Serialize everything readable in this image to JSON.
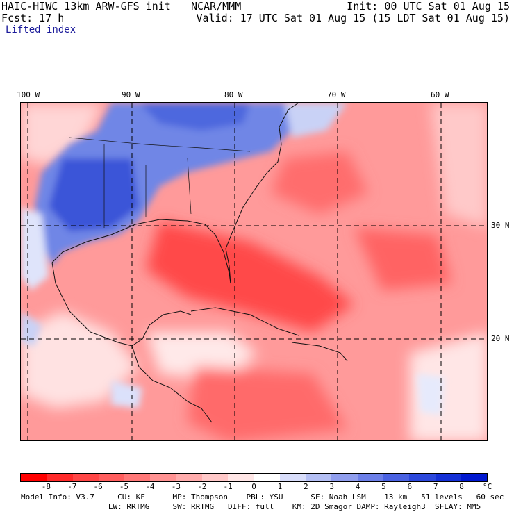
{
  "header": {
    "model": "HAIC-HIWC 13km ARW-GFS init",
    "org": "NCAR/MMM",
    "init": "Init: 00 UTC Sat 01 Aug 15",
    "fcst": "Fcst:   17 h",
    "valid": "Valid: 17 UTC Sat 01 Aug 15 (15 LDT Sat 01 Aug 15)",
    "field": "Lifted index"
  },
  "map": {
    "lon_labels": [
      "100 W",
      "90 W",
      "80 W",
      "70 W",
      "60 W"
    ],
    "lat_labels": [
      "30 N",
      "20 N"
    ],
    "colors": {
      "cold_blue": "#3a55d8",
      "mid_blue": "#6f86e6",
      "light_blue": "#c9d2f6",
      "red": "#ff3b3b",
      "mid_red": "#ff7c7c",
      "light_red": "#ffc4c4",
      "white": "#ffffff"
    }
  },
  "colorbar": {
    "ticks": [
      "-8",
      "-7",
      "-6",
      "-5",
      "-4",
      "-3",
      "-2",
      "-1",
      "0",
      "1",
      "2",
      "3",
      "4",
      "5",
      "6",
      "7",
      "8"
    ],
    "unit": "°C",
    "colors": [
      "#ff0000",
      "#ff2a2a",
      "#ff4646",
      "#ff5e5e",
      "#ff7878",
      "#ff9292",
      "#ffacac",
      "#ffc8c8",
      "#ffe6e6",
      "#ffffff",
      "#d8ddfa",
      "#b4bff4",
      "#909eee",
      "#6c7fe8",
      "#4a62e2",
      "#2c48dc",
      "#1430d6",
      "#0018d0"
    ]
  },
  "model_info": {
    "line1": "Model Info: V3.7     CU: KF      MP: Thompson    PBL: YSU      SF: Noah LSM    13 km   51 levels   60 sec",
    "line2": "                   LW: RRTMG     SW: RRTMG   DIFF: full    KM: 2D Smagor DAMP: Rayleigh3  SFLAY: MM5"
  }
}
